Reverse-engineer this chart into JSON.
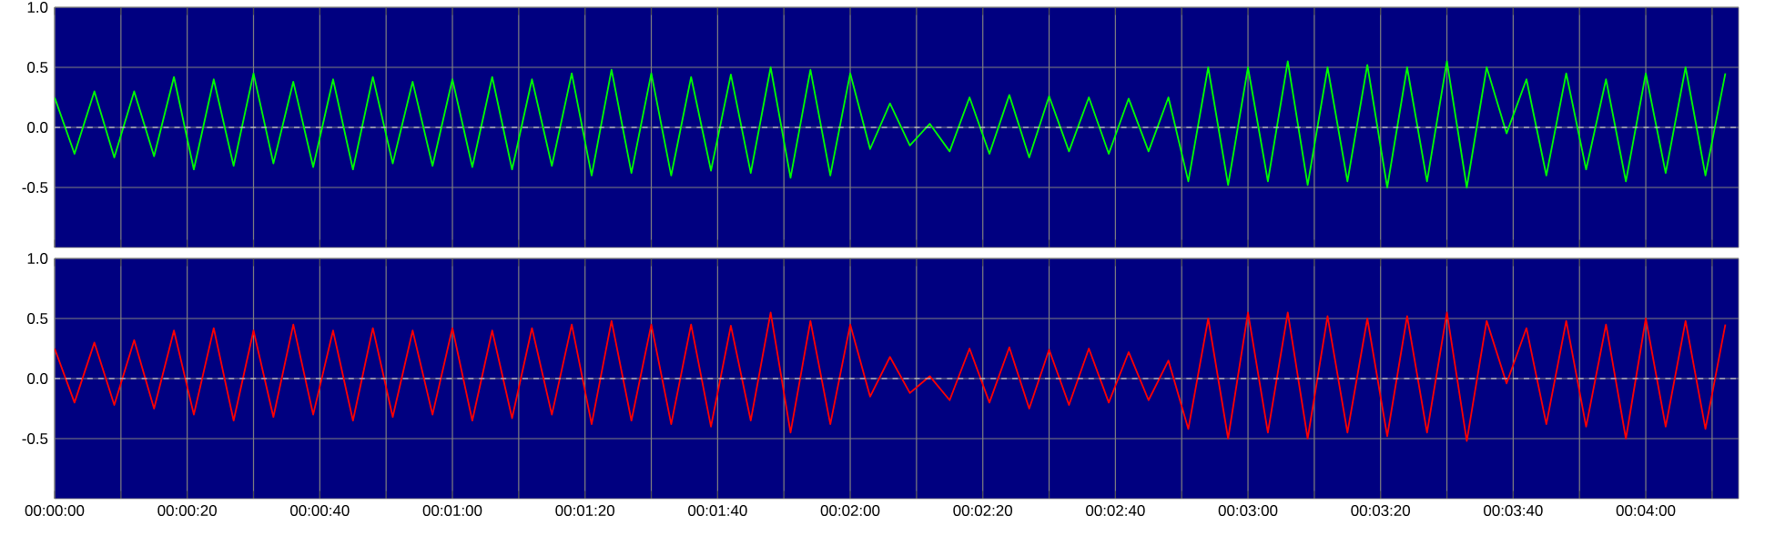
{
  "chart_data": [
    {
      "type": "line",
      "tick_labels": "y",
      "grid": true,
      "xlim": [
        0,
        254
      ],
      "ylim": [
        -1,
        1
      ],
      "yticks": [
        {
          "value": 1,
          "label": "1.0"
        },
        {
          "value": 0.5,
          "label": "0.5"
        },
        {
          "value": 0,
          "label": "0.0"
        },
        {
          "value": -0.5,
          "label": "-0.5"
        }
      ],
      "xticks": [
        {
          "value": 0,
          "label": null
        },
        {
          "value": 10,
          "label": null
        },
        {
          "value": 20,
          "label": null
        },
        {
          "value": 30,
          "label": null
        },
        {
          "value": 40,
          "label": null
        },
        {
          "value": 50,
          "label": null
        },
        {
          "value": 60,
          "label": null
        },
        {
          "value": 70,
          "label": null
        },
        {
          "value": 80,
          "label": null
        },
        {
          "value": 90,
          "label": null
        },
        {
          "value": 100,
          "label": null
        },
        {
          "value": 110,
          "label": null
        },
        {
          "value": 120,
          "label": null
        },
        {
          "value": 130,
          "label": null
        },
        {
          "value": 140,
          "label": null
        },
        {
          "value": 150,
          "label": null
        },
        {
          "value": 160,
          "label": null
        },
        {
          "value": 170,
          "label": null
        },
        {
          "value": 180,
          "label": null
        },
        {
          "value": 190,
          "label": null
        },
        {
          "value": 200,
          "label": null
        },
        {
          "value": 210,
          "label": null
        },
        {
          "value": 220,
          "label": null
        },
        {
          "value": 230,
          "label": null
        },
        {
          "value": 240,
          "label": null
        },
        {
          "value": 250,
          "label": null
        }
      ],
      "ref_lines": [
        {
          "axis": "y",
          "value": 0,
          "color": "#d8d8d8",
          "line_style": "dashed"
        }
      ],
      "x": [
        0,
        3,
        6,
        9,
        12,
        15,
        18,
        21,
        24,
        27,
        30,
        33,
        36,
        39,
        42,
        45,
        48,
        51,
        54,
        57,
        60,
        63,
        66,
        69,
        72,
        75,
        78,
        81,
        84,
        87,
        90,
        93,
        96,
        99,
        102,
        105,
        108,
        111,
        114,
        117,
        120,
        123,
        126,
        129,
        132,
        135,
        138,
        141,
        144,
        147,
        150,
        153,
        156,
        159,
        162,
        165,
        168,
        171,
        174,
        177,
        180,
        183,
        186,
        189,
        192,
        195,
        198,
        201,
        204,
        207,
        210,
        213,
        216,
        219,
        222,
        225,
        228,
        231,
        234,
        237,
        240,
        243,
        246,
        249,
        252
      ],
      "series": [
        {
          "color": "#00ff00",
          "values": [
            0.25,
            -0.22,
            0.3,
            -0.25,
            0.3,
            -0.24,
            0.42,
            -0.35,
            0.4,
            -0.32,
            0.45,
            -0.3,
            0.38,
            -0.33,
            0.4,
            -0.35,
            0.42,
            -0.3,
            0.38,
            -0.32,
            0.4,
            -0.33,
            0.42,
            -0.35,
            0.4,
            -0.32,
            0.45,
            -0.4,
            0.48,
            -0.38,
            0.45,
            -0.4,
            0.42,
            -0.36,
            0.44,
            -0.38,
            0.5,
            -0.42,
            0.48,
            -0.4,
            0.45,
            -0.18,
            0.2,
            -0.15,
            0.03,
            -0.2,
            0.25,
            -0.22,
            0.27,
            -0.25,
            0.26,
            -0.2,
            0.25,
            -0.22,
            0.24,
            -0.2,
            0.25,
            -0.45,
            0.5,
            -0.48,
            0.5,
            -0.45,
            0.55,
            -0.48,
            0.5,
            -0.45,
            0.52,
            -0.5,
            0.5,
            -0.45,
            0.55,
            -0.5,
            0.5,
            -0.05,
            0.4,
            -0.4,
            0.45,
            -0.35,
            0.4,
            -0.45,
            0.45,
            -0.38,
            0.5,
            -0.4,
            0.45
          ]
        }
      ]
    },
    {
      "type": "line",
      "grid": true,
      "xlim": [
        0,
        254
      ],
      "ylim": [
        -1,
        1
      ],
      "yticks": [
        {
          "value": 1,
          "label": "1.0"
        },
        {
          "value": 0.5,
          "label": "0.5"
        },
        {
          "value": 0,
          "label": "0.0"
        },
        {
          "value": -0.5,
          "label": "-0.5"
        }
      ],
      "xticks": [
        {
          "value": 0,
          "label": "00:00:00"
        },
        {
          "value": 10,
          "label": null
        },
        {
          "value": 20,
          "label": "00:00:20"
        },
        {
          "value": 30,
          "label": null
        },
        {
          "value": 40,
          "label": "00:00:40"
        },
        {
          "value": 50,
          "label": null
        },
        {
          "value": 60,
          "label": "00:01:00"
        },
        {
          "value": 70,
          "label": null
        },
        {
          "value": 80,
          "label": "00:01:20"
        },
        {
          "value": 90,
          "label": null
        },
        {
          "value": 100,
          "label": "00:01:40"
        },
        {
          "value": 110,
          "label": null
        },
        {
          "value": 120,
          "label": "00:02:00"
        },
        {
          "value": 130,
          "label": null
        },
        {
          "value": 140,
          "label": "00:02:20"
        },
        {
          "value": 150,
          "label": null
        },
        {
          "value": 160,
          "label": "00:02:40"
        },
        {
          "value": 170,
          "label": null
        },
        {
          "value": 180,
          "label": "00:03:00"
        },
        {
          "value": 190,
          "label": null
        },
        {
          "value": 200,
          "label": "00:03:20"
        },
        {
          "value": 210,
          "label": null
        },
        {
          "value": 220,
          "label": "00:03:40"
        },
        {
          "value": 230,
          "label": null
        },
        {
          "value": 240,
          "label": "00:04:00"
        },
        {
          "value": 250,
          "label": null
        }
      ],
      "ref_lines": [
        {
          "axis": "y",
          "value": 0,
          "color": "#d8d8d8",
          "line_style": "dashed"
        }
      ],
      "x": [
        0,
        3,
        6,
        9,
        12,
        15,
        18,
        21,
        24,
        27,
        30,
        33,
        36,
        39,
        42,
        45,
        48,
        51,
        54,
        57,
        60,
        63,
        66,
        69,
        72,
        75,
        78,
        81,
        84,
        87,
        90,
        93,
        96,
        99,
        102,
        105,
        108,
        111,
        114,
        117,
        120,
        123,
        126,
        129,
        132,
        135,
        138,
        141,
        144,
        147,
        150,
        153,
        156,
        159,
        162,
        165,
        168,
        171,
        174,
        177,
        180,
        183,
        186,
        189,
        192,
        195,
        198,
        201,
        204,
        207,
        210,
        213,
        216,
        219,
        222,
        225,
        228,
        231,
        234,
        237,
        240,
        243,
        246,
        249,
        252
      ],
      "series": [
        {
          "color": "#ff0000",
          "values": [
            0.25,
            -0.2,
            0.3,
            -0.22,
            0.32,
            -0.25,
            0.4,
            -0.3,
            0.42,
            -0.35,
            0.4,
            -0.32,
            0.45,
            -0.3,
            0.4,
            -0.35,
            0.42,
            -0.32,
            0.4,
            -0.3,
            0.42,
            -0.35,
            0.4,
            -0.33,
            0.42,
            -0.3,
            0.45,
            -0.38,
            0.48,
            -0.35,
            0.45,
            -0.38,
            0.45,
            -0.4,
            0.44,
            -0.35,
            0.55,
            -0.45,
            0.48,
            -0.38,
            0.45,
            -0.15,
            0.18,
            -0.12,
            0.02,
            -0.18,
            0.25,
            -0.2,
            0.26,
            -0.25,
            0.24,
            -0.22,
            0.25,
            -0.2,
            0.22,
            -0.18,
            0.15,
            -0.42,
            0.5,
            -0.5,
            0.55,
            -0.45,
            0.55,
            -0.5,
            0.52,
            -0.45,
            0.5,
            -0.48,
            0.52,
            -0.45,
            0.55,
            -0.52,
            0.48,
            -0.04,
            0.42,
            -0.38,
            0.48,
            -0.4,
            0.45,
            -0.5,
            0.5,
            -0.4,
            0.48,
            -0.42,
            0.45
          ]
        }
      ]
    }
  ]
}
